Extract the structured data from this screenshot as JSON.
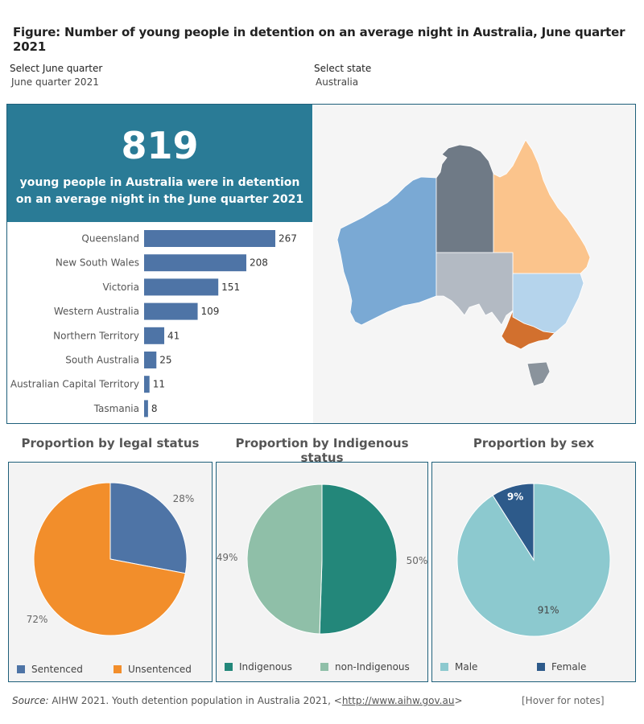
{
  "title": "Figure: Number of young people in detention on an average night in  Australia, June quarter 2021",
  "filters": {
    "quarter_label": "Select June quarter",
    "quarter_value": "June quarter 2021",
    "state_label": "Select state",
    "state_value": "Australia"
  },
  "kpi": {
    "number": "819",
    "text": "young people in  Australia were in detention on an average night in the June quarter 2021"
  },
  "colors": {
    "kpi_bg": "#2a7b96",
    "bar": "#4e74a6",
    "sentenced": "#4e74a6",
    "unsentenced": "#f28e2b",
    "indigenous": "#23877a",
    "non_indigenous": "#8fbfa8",
    "male": "#8cc9cf",
    "female": "#2d5a8a",
    "map_wa": "#7aa9d4",
    "map_nt": "#6f7a86",
    "map_qld": "#fbc48c",
    "map_sa": "#b3bac3",
    "map_nsw": "#b5d4ec",
    "map_vic": "#d2702e",
    "map_tas": "#8a939c"
  },
  "chart_data": [
    {
      "type": "bar",
      "orientation": "horizontal",
      "categories": [
        "Queensland",
        "New South Wales",
        "Victoria",
        "Western Australia",
        "Northern Territory",
        "South Australia",
        "Australian Capital Territory",
        "Tasmania"
      ],
      "values": [
        267,
        208,
        151,
        109,
        41,
        25,
        11,
        8
      ],
      "title": "",
      "xlabel": "",
      "ylabel": ""
    },
    {
      "type": "pie",
      "title": "Proportion by legal status",
      "labels": [
        "Sentenced",
        "Unsentenced"
      ],
      "values": [
        28,
        72
      ],
      "value_labels": [
        "28%",
        "72%"
      ]
    },
    {
      "type": "pie",
      "title": "Proportion by Indigenous status",
      "labels": [
        "Indigenous",
        "non-Indigenous"
      ],
      "values": [
        50,
        49
      ],
      "value_labels": [
        "50%",
        "49%"
      ]
    },
    {
      "type": "pie",
      "title": "Proportion by sex",
      "labels": [
        "Male",
        "Female"
      ],
      "values": [
        91,
        9
      ],
      "value_labels": [
        "91%",
        "9%"
      ]
    }
  ],
  "source": {
    "prefix": "Source:",
    "text": " AIHW 2021. Youth detention population in Australia 2021, <",
    "link": "http://www.aihw.gov.au",
    "suffix": ">"
  },
  "hover_notes": "[Hover for notes]"
}
